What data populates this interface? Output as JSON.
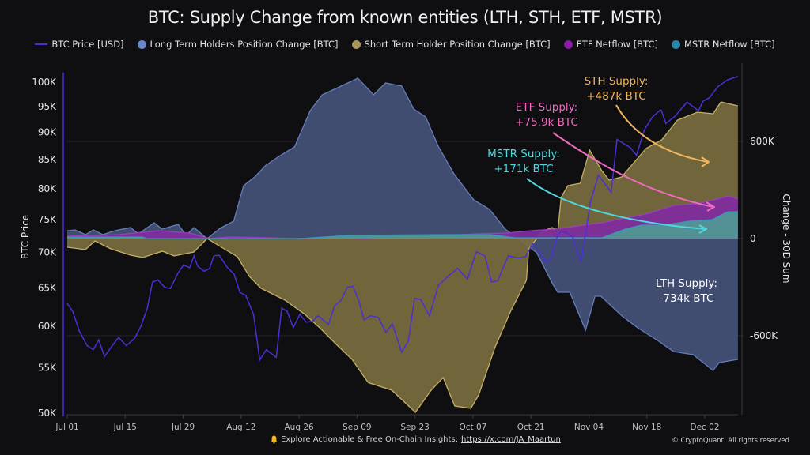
{
  "chart_data": {
    "type": "area",
    "title": "BTC: Supply Change from known entities (LTH, STH, ETF, MSTR)",
    "watermark": "CryptoQuant",
    "x_start_date": "2024-07-01",
    "x_end_date": "2024-12-09",
    "x_tick_labels": [
      "Jul 01",
      "Jul 15",
      "Jul 29",
      "Aug 12",
      "Aug 26",
      "Sep 09",
      "Sep 23",
      "Oct 07",
      "Oct 21",
      "Nov 04",
      "Nov 18",
      "Dec 02"
    ],
    "x_tick_days": [
      0,
      14,
      28,
      42,
      56,
      70,
      84,
      98,
      112,
      126,
      140,
      154
    ],
    "y_left": {
      "label": "BTC Price",
      "scale": "log",
      "range": [
        50000,
        103000
      ],
      "tick_values": [
        50000,
        55000,
        60000,
        65000,
        70000,
        75000,
        80000,
        85000,
        90000,
        95000,
        100000
      ],
      "tick_labels": [
        "50K",
        "55K",
        "60K",
        "65K",
        "70K",
        "75K",
        "80K",
        "85K",
        "90K",
        "95K",
        "100K"
      ]
    },
    "y_right": {
      "label": "Change - 30D Sum",
      "scale": "linear",
      "range": [
        -1030000,
        1030000
      ],
      "tick_values": [
        -600000,
        0,
        600000
      ],
      "tick_labels": [
        "-600K",
        "0",
        "600K"
      ]
    },
    "grid": true,
    "legend_position": "top-center",
    "series": [
      {
        "name": "BTC Price [USD]",
        "type": "line",
        "axis": "left",
        "color": "#4b2fd6",
        "days": [
          0,
          1.3,
          2.9,
          4.8,
          6.3,
          7.6,
          9,
          10.9,
          12.4,
          14.3,
          16.3,
          17.8,
          19.3,
          20.6,
          21.9,
          23.5,
          24.9,
          26.8,
          28.1,
          29.6,
          30.6,
          31.5,
          33.1,
          34.4,
          35.4,
          36.7,
          38.6,
          40.3,
          41.7,
          43.1,
          45,
          46.5,
          48.1,
          50.5,
          51.8,
          53.1,
          54.6,
          56.2,
          57.7,
          59.2,
          60.6,
          63.1,
          64.6,
          66.1,
          67.7,
          69,
          70.4,
          71.7,
          73.2,
          75.1,
          77,
          78.5,
          80.8,
          82.4,
          83.9,
          85.4,
          87.5,
          89.6,
          92,
          94.3,
          96.7,
          98.8,
          100.9,
          102.5,
          104,
          106.5,
          109,
          110.7,
          112.4,
          114.1,
          115.5,
          116.8,
          118.7,
          120.2,
          122.1,
          124.1,
          126.4,
          128.3,
          131.4,
          132.8,
          136,
          137.5,
          139.4,
          141.3,
          143.2,
          143.5,
          144.6,
          146.8,
          149.7,
          152.5,
          153.6,
          155.1,
          157.2,
          159.5,
          162
        ],
        "values": [
          62900,
          61900,
          59400,
          57600,
          57100,
          58300,
          56300,
          57600,
          58600,
          57600,
          58500,
          60000,
          62200,
          65800,
          66100,
          65100,
          64900,
          67100,
          68200,
          67800,
          69500,
          68000,
          67300,
          67700,
          69500,
          69600,
          67900,
          66900,
          64400,
          64000,
          61500,
          55900,
          57100,
          56200,
          62300,
          61900,
          59800,
          61500,
          60500,
          60600,
          61300,
          60200,
          62600,
          63300,
          65100,
          65200,
          63300,
          60800,
          61300,
          61100,
          59200,
          60300,
          56800,
          58200,
          63600,
          63400,
          61300,
          65300,
          66600,
          67700,
          66200,
          70100,
          69500,
          65800,
          66000,
          69500,
          69200,
          69400,
          71300,
          70100,
          68600,
          69100,
          73000,
          73100,
          72300,
          68600,
          77800,
          82300,
          79400,
          88700,
          87200,
          85800,
          90500,
          92900,
          94300,
          94300,
          91700,
          93100,
          95900,
          94200,
          96100,
          96800,
          99100,
          100500,
          101200
        ]
      },
      {
        "name": "Long Term Holders Position Change [BTC]",
        "type": "area",
        "axis": "right",
        "color": "#6a86c9",
        "fill": "#445278",
        "days": [
          0,
          1.9,
          4.4,
          6.3,
          8.6,
          11.5,
          15.3,
          17.2,
          21,
          22.9,
          26.8,
          28.7,
          30.6,
          33.8,
          36.9,
          40.2,
          42.6,
          45.3,
          47.8,
          51.1,
          54.9,
          58.7,
          61.6,
          67.3,
          70.2,
          74,
          76.9,
          80.8,
          83.7,
          86.6,
          89.6,
          93.4,
          98.2,
          102,
          105.8,
          109.6,
          111.5,
          113.4,
          117.3,
          118.5,
          121.4,
          125.2,
          127.5,
          128.9,
          134,
          137.8,
          142.6,
          146.4,
          151.2,
          156,
          157.5,
          162
        ],
        "values": [
          48800,
          53700,
          24400,
          53700,
          24400,
          48800,
          68300,
          29300,
          97600,
          58500,
          87800,
          19500,
          68300,
          0,
          63400,
          107300,
          326800,
          380500,
          448800,
          507300,
          565900,
          790200,
          887800,
          955600,
          990000,
          887800,
          961400,
          941900,
          800000,
          751200,
          570700,
          400000,
          239000,
          180500,
          58500,
          -14600,
          -48800,
          -87800,
          -282900,
          -331700,
          -331700,
          -565900,
          -356100,
          -356100,
          -478000,
          -551200,
          -629300,
          -697600,
          -717100,
          -814600,
          -765800,
          -746300
        ]
      },
      {
        "name": "Short Term Holder Position Change [BTC]",
        "type": "area",
        "axis": "right",
        "color": "#d4bc6a",
        "fill": "#7a6c3f",
        "days": [
          0,
          4.4,
          6.7,
          10.5,
          15.3,
          18.2,
          23,
          25.8,
          30.6,
          33.8,
          38.2,
          41.1,
          44,
          46.8,
          52.6,
          57.4,
          61.2,
          65,
          68.8,
          72.7,
          78.4,
          84.1,
          87.9,
          90.8,
          93.6,
          97.5,
          99.4,
          103.3,
          107.1,
          110.9,
          111.5,
          114.7,
          117.1,
          118.5,
          119.3,
          120.9,
          123.9,
          126.2,
          129.1,
          130.9,
          133.9,
          139.8,
          143.6,
          147.4,
          152.2,
          156,
          157.9,
          162
        ],
        "values": [
          -53700,
          -68300,
          -14600,
          -63400,
          -102400,
          -117100,
          -78000,
          -107300,
          -82900,
          0,
          -68300,
          -112200,
          -234100,
          -307300,
          -380500,
          -468300,
          -556100,
          -653700,
          -746300,
          -889700,
          -936600,
          -1073200,
          -936600,
          -858500,
          -1034100,
          -1048800,
          -965800,
          -673200,
          -448800,
          -258500,
          -63400,
          43900,
          68300,
          48800,
          253700,
          326800,
          341500,
          546300,
          419500,
          361000,
          380500,
          556100,
          609800,
          731700,
          780500,
          770700,
          843900,
          819500,
          585400
        ]
      },
      {
        "name": "ETF Netflow [BTC]",
        "type": "area",
        "axis": "right",
        "color": "#a040c8",
        "fill": "#7e2d9c",
        "days": [
          0,
          12.4,
          22,
          29.6,
          34.4,
          39.2,
          48.8,
          54.6,
          64.1,
          71.7,
          85.1,
          98.5,
          106.1,
          111.9,
          117.7,
          123.4,
          129.1,
          134.8,
          140.6,
          146.4,
          152.2,
          156.9,
          159.8,
          162
        ],
        "values": [
          14600,
          24400,
          48800,
          34100,
          0,
          9800,
          4900,
          0,
          4900,
          0,
          9800,
          29300,
          34100,
          48800,
          58500,
          78000,
          97600,
          126800,
          156100,
          204900,
          214600,
          243900,
          263400,
          243900
        ]
      },
      {
        "name": "MSTR Netflow [BTC]",
        "type": "area",
        "axis": "right",
        "color": "#2f9dc4",
        "fill": "#4f9a95",
        "days": [
          0,
          18.2,
          19.1,
          56.2,
          67.7,
          90.8,
          102.3,
          108.1,
          129.1,
          134.8,
          138.6,
          144.3,
          150.1,
          155.8,
          159.6,
          162
        ],
        "values": [
          9800,
          9800,
          0,
          0,
          19500,
          24400,
          24400,
          4900,
          4900,
          58500,
          82900,
          82900,
          107300,
          117100,
          165900,
          165900
        ]
      }
    ],
    "annotations": [
      {
        "label_line1": "STH Supply:",
        "label_line2": "+487k BTC",
        "color": "#f2b45c"
      },
      {
        "label_line1": "ETF Supply:",
        "label_line2": "+75.9k BTC",
        "color": "#f06ac0"
      },
      {
        "label_line1": "MSTR Supply:",
        "label_line2": "+171k BTC",
        "color": "#4fd8e0"
      },
      {
        "label_line1": "LTH Supply:",
        "label_line2": "-734k BTC",
        "color": "#ffffff"
      }
    ]
  },
  "legend": [
    {
      "label": "BTC Price [USD]",
      "marker": "line",
      "color": "#4b2fd6"
    },
    {
      "label": "Long Term Holders Position Change [BTC]",
      "marker": "dot",
      "color": "#6a86c9"
    },
    {
      "label": "Short Term Holder Position Change [BTC]",
      "marker": "dot",
      "color": "#a8955a"
    },
    {
      "label": "ETF Netflow [BTC]",
      "marker": "dot",
      "color": "#8a1aa8"
    },
    {
      "label": "MSTR Netflow [BTC]",
      "marker": "dot",
      "color": "#2a86a8"
    }
  ],
  "footer": {
    "icon": "bell-icon",
    "text": "Explore Actionable & Free On-Chain Insights:",
    "link_text": "https://x.com/JA_Maartun",
    "copyright": "© CryptoQuant. All rights reserved"
  }
}
